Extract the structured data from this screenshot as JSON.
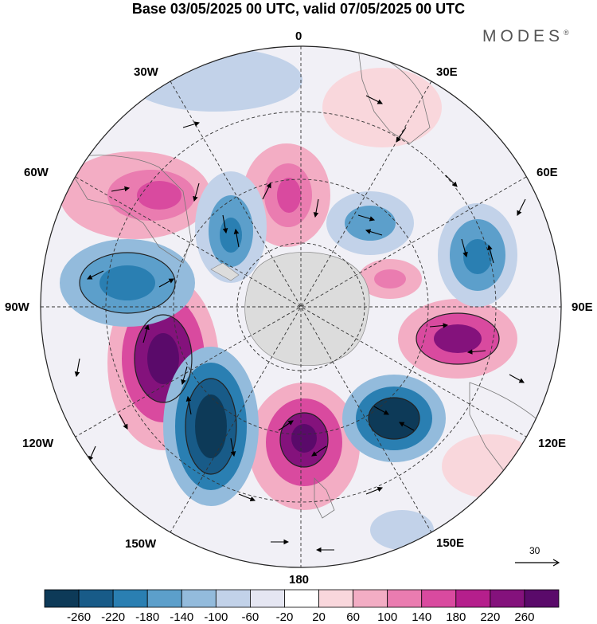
{
  "title": "Base 03/05/2025 00 UTC, valid 07/05/2025 00 UTC",
  "brand": "MODES",
  "brand_mark": "®",
  "longitude_labels": {
    "0": "0",
    "30E": "30E",
    "60E": "60E",
    "90E": "90E",
    "120E": "120E",
    "150E": "150E",
    "180": "180",
    "150W": "150W",
    "120W": "120W",
    "90W": "90W",
    "60W": "60W",
    "30W": "30W"
  },
  "reference_vector": {
    "value": "30"
  },
  "colorbar": {
    "ticks": [
      "-260",
      "-220",
      "-180",
      "-140",
      "-100",
      "-60",
      "-20",
      "20",
      "60",
      "100",
      "140",
      "180",
      "220",
      "260"
    ],
    "colors": [
      "#0d3a58",
      "#185b88",
      "#2a7fb2",
      "#5c9fcb",
      "#93bbdc",
      "#c2d2e9",
      "#e5e6f2",
      "#ffffff",
      "#f9d7dc",
      "#f3adc4",
      "#ea7cb0",
      "#d94a9f",
      "#b51f8c",
      "#84127c",
      "#5a0a6a"
    ]
  },
  "map": {
    "projection": "south-polar-stereographic",
    "features": [
      "coastlines",
      "graticule",
      "wind-vectors",
      "filled-anomaly-contours"
    ]
  }
}
